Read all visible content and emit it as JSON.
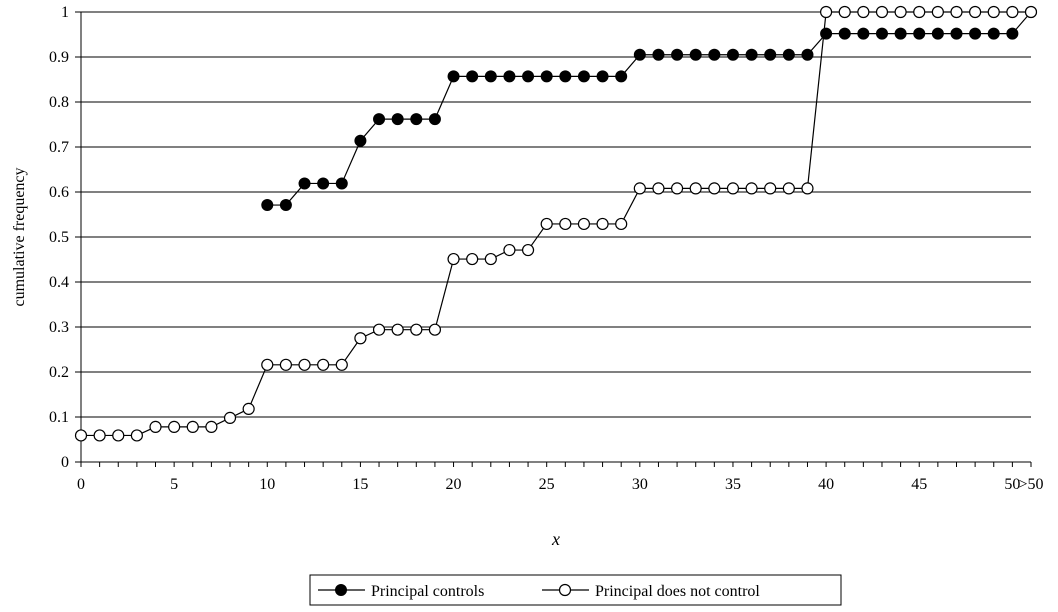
{
  "chart_data": {
    "type": "line",
    "title": "",
    "xlabel": "x",
    "ylabel": "cumulative frequency",
    "ylim": [
      0,
      1
    ],
    "yticks": [
      "0",
      "0.1",
      "0.2",
      "0.3",
      "0.4",
      "0.5",
      "0.6",
      "0.7",
      "0.8",
      "0.9",
      "1"
    ],
    "xtick_labels": [
      {
        "pos": 0,
        "label": "0"
      },
      {
        "pos": 5,
        "label": "5"
      },
      {
        "pos": 10,
        "label": "10"
      },
      {
        "pos": 15,
        "label": "15"
      },
      {
        "pos": 20,
        "label": "20"
      },
      {
        "pos": 25,
        "label": "25"
      },
      {
        "pos": 30,
        "label": "30"
      },
      {
        "pos": 35,
        "label": "35"
      },
      {
        "pos": 40,
        "label": "40"
      },
      {
        "pos": 45,
        "label": "45"
      },
      {
        "pos": 50,
        "label": "50"
      },
      {
        "pos": 51,
        "label": ">50"
      }
    ],
    "grid": "horizontal",
    "legend": "bottom",
    "series": [
      {
        "name": "Principal controls",
        "marker": "filled-circle",
        "color": "#000000",
        "x": [
          10,
          11,
          12,
          13,
          14,
          15,
          16,
          17,
          18,
          19,
          20,
          21,
          22,
          23,
          24,
          25,
          26,
          27,
          28,
          29,
          30,
          31,
          32,
          33,
          34,
          35,
          36,
          37,
          38,
          39,
          40,
          41,
          42,
          43,
          44,
          45,
          46,
          47,
          48,
          49,
          50,
          51
        ],
        "values": [
          0.571,
          0.571,
          0.619,
          0.619,
          0.619,
          0.714,
          0.762,
          0.762,
          0.762,
          0.762,
          0.857,
          0.857,
          0.857,
          0.857,
          0.857,
          0.857,
          0.857,
          0.857,
          0.857,
          0.857,
          0.905,
          0.905,
          0.905,
          0.905,
          0.905,
          0.905,
          0.905,
          0.905,
          0.905,
          0.905,
          0.952,
          0.952,
          0.952,
          0.952,
          0.952,
          0.952,
          0.952,
          0.952,
          0.952,
          0.952,
          0.952,
          1.0
        ]
      },
      {
        "name": "Principal does not control",
        "marker": "open-circle",
        "color": "#000000",
        "x": [
          0,
          1,
          2,
          3,
          4,
          5,
          6,
          7,
          8,
          9,
          10,
          11,
          12,
          13,
          14,
          15,
          16,
          17,
          18,
          19,
          20,
          21,
          22,
          23,
          24,
          25,
          26,
          27,
          28,
          29,
          30,
          31,
          32,
          33,
          34,
          35,
          36,
          37,
          38,
          39,
          40,
          41,
          42,
          43,
          44,
          45,
          46,
          47,
          48,
          49,
          50,
          51
        ],
        "values": [
          0.059,
          0.059,
          0.059,
          0.059,
          0.078,
          0.078,
          0.078,
          0.078,
          0.098,
          0.118,
          0.216,
          0.216,
          0.216,
          0.216,
          0.216,
          0.275,
          0.294,
          0.294,
          0.294,
          0.294,
          0.451,
          0.451,
          0.451,
          0.471,
          0.471,
          0.529,
          0.529,
          0.529,
          0.529,
          0.529,
          0.608,
          0.608,
          0.608,
          0.608,
          0.608,
          0.608,
          0.608,
          0.608,
          0.608,
          0.608,
          1.0,
          1.0,
          1.0,
          1.0,
          1.0,
          1.0,
          1.0,
          1.0,
          1.0,
          1.0,
          1.0,
          1.0
        ]
      }
    ]
  }
}
